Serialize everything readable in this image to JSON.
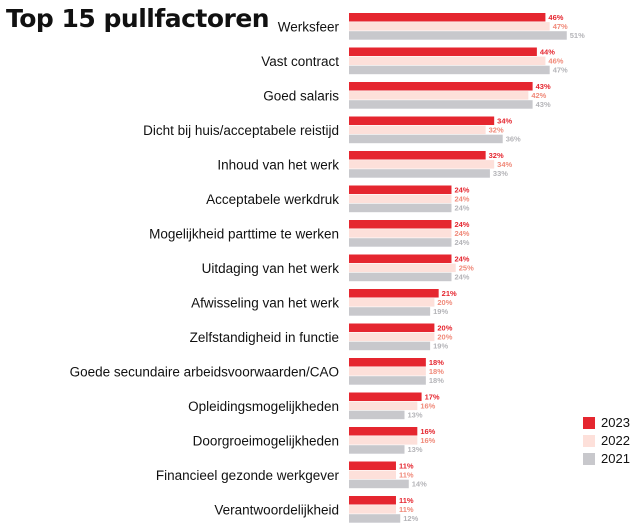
{
  "chart_data": {
    "type": "bar",
    "orientation": "horizontal",
    "title": "Top 15 pullfactoren",
    "categories": [
      "Werksfeer",
      "Vast contract",
      "Goed salaris",
      "Dicht bij huis/acceptabele reistijd",
      "Inhoud van het werk",
      "Acceptabele werkdruk",
      "Mogelijkheid parttime te werken",
      "Uitdaging van het werk",
      "Afwisseling van het werk",
      "Zelfstandigheid in functie",
      "Goede secundaire arbeidsvoorwaarden/CAO",
      "Opleidingsmogelijkheden",
      "Doorgroeimogelijkheden",
      "Financieel gezonde werkgever",
      "Verantwoordelijkheid"
    ],
    "series": [
      {
        "name": "2023",
        "color": "#e5262f",
        "label_color": "#e5262f",
        "values": [
          46,
          44,
          43,
          34,
          32,
          24,
          24,
          24,
          21,
          20,
          18,
          17,
          16,
          11,
          11
        ],
        "labels": [
          "46%",
          "44%",
          "43%",
          "34%",
          "32%",
          "24%",
          "24%",
          "24%",
          "21%",
          "20%",
          "18%",
          "17%",
          "16%",
          "11%",
          "11%"
        ]
      },
      {
        "name": "2022",
        "color": "#fde0da",
        "label_color": "#f08a7a",
        "values": [
          47,
          46,
          42,
          32,
          34,
          24,
          24,
          25,
          20,
          20,
          18,
          16,
          16,
          11,
          11
        ],
        "labels": [
          "47%",
          "46%",
          "42%",
          "32%",
          "34%",
          "24%",
          "24%",
          "25%",
          "20%",
          "20%",
          "18%",
          "16%",
          "16%",
          "11%",
          "11%"
        ]
      },
      {
        "name": "2021",
        "color": "#c8c8cc",
        "label_color": "#b4b4b8",
        "values": [
          51,
          47,
          43,
          36,
          33,
          24,
          24,
          24,
          19,
          19,
          18,
          13,
          13,
          14,
          12
        ],
        "labels": [
          "51%",
          "47%",
          "43%",
          "36%",
          "33%",
          "24%",
          "24%",
          "24%",
          "19%",
          "19%",
          "18%",
          "13%",
          "13%",
          "14%",
          "12%"
        ]
      }
    ],
    "legend_position": "bottom-right",
    "xlim": [
      0,
      51
    ],
    "grid": false
  }
}
